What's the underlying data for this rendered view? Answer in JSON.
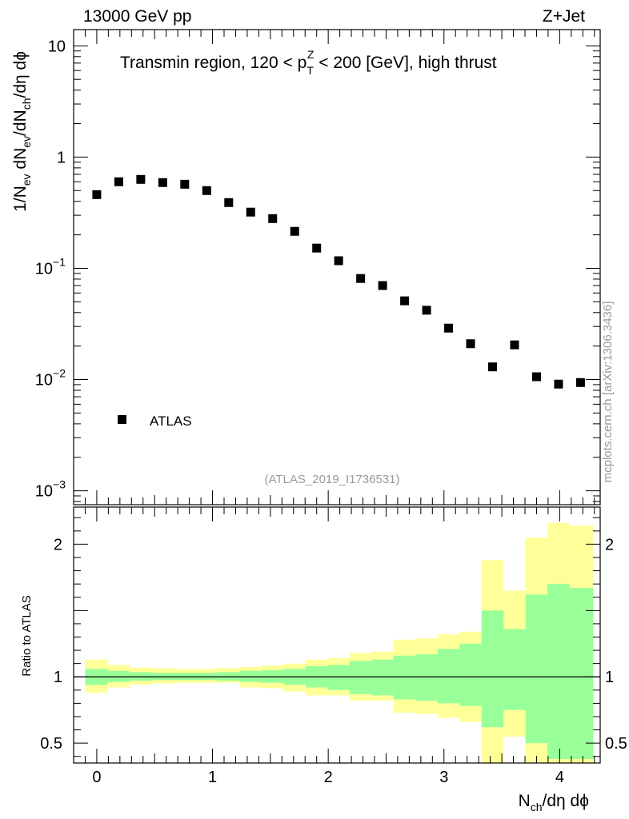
{
  "header": {
    "left_label": "13000 GeV pp",
    "right_label": "Z+Jet",
    "side_label": "mcplots.cern.ch [arXiv:1306.3436]"
  },
  "chart_data": [
    {
      "type": "scatter",
      "panel": "main",
      "title_parts": {
        "prefix": "Transmin region, 120 < p",
        "sub": "T",
        "sup": "Z",
        "suffix": " < 200 [GeV], high thrust"
      },
      "ylabel_parts": {
        "p1": "1/N",
        "s1": "ev",
        "p2": " dN",
        "s2": "ev",
        "p3": "/dN",
        "s3": "ch",
        "p4": "/dη dϕ"
      },
      "yscale": "log",
      "ylim": [
        0.00075,
        14
      ],
      "xlim": [
        -0.2,
        4.35
      ],
      "yticks": [
        {
          "value": 0.001,
          "base": "10",
          "exp": "−3"
        },
        {
          "value": 0.01,
          "base": "10",
          "exp": "−2"
        },
        {
          "value": 0.1,
          "base": "10",
          "exp": "−1"
        },
        {
          "value": 1,
          "base": "1",
          "exp": ""
        },
        {
          "value": 10,
          "base": "10",
          "exp": ""
        }
      ],
      "watermark": "(ATLAS_2019_I1736531)",
      "legend": [
        {
          "label": "ATLAS",
          "marker": "square",
          "color": "#000000"
        }
      ],
      "series": [
        {
          "name": "ATLAS",
          "x": [
            0.0,
            0.19,
            0.38,
            0.57,
            0.76,
            0.95,
            1.14,
            1.33,
            1.52,
            1.71,
            1.9,
            2.09,
            2.28,
            2.47,
            2.66,
            2.85,
            3.04,
            3.23,
            3.42,
            3.61,
            3.8,
            3.99,
            4.18
          ],
          "y": [
            0.46,
            0.6,
            0.63,
            0.59,
            0.57,
            0.5,
            0.39,
            0.32,
            0.28,
            0.215,
            0.152,
            0.117,
            0.081,
            0.07,
            0.051,
            0.042,
            0.029,
            0.021,
            0.013,
            0.0205,
            0.0106,
            0.0091,
            0.0094
          ]
        }
      ]
    },
    {
      "type": "area",
      "panel": "ratio",
      "ylabel": "Ratio to ATLAS",
      "xlabel_parts": {
        "p1": "N",
        "s1": "ch",
        "p2": "/dη dϕ"
      },
      "ylim": [
        0.35,
        2.28
      ],
      "xlim": [
        -0.2,
        4.35
      ],
      "yticks": [
        0.5,
        1,
        2
      ],
      "ytick_labels": [
        "0.5",
        "1",
        "2"
      ],
      "xticks": [
        0,
        1,
        2,
        3,
        4
      ],
      "xtick_labels": [
        "0",
        "1",
        "2",
        "3",
        "4"
      ],
      "reference_line": 1,
      "bin_edges": [
        -0.1,
        0.095,
        0.285,
        0.475,
        0.665,
        0.855,
        1.045,
        1.235,
        1.425,
        1.615,
        1.805,
        1.995,
        2.185,
        2.375,
        2.565,
        2.755,
        2.945,
        3.135,
        3.325,
        3.515,
        3.705,
        3.895,
        4.085,
        4.29
      ],
      "bands": [
        {
          "name": "total uncertainty",
          "color": "#ffff99",
          "low": [
            0.88,
            0.92,
            0.94,
            0.95,
            0.955,
            0.955,
            0.955,
            0.92,
            0.915,
            0.89,
            0.86,
            0.86,
            0.82,
            0.82,
            0.73,
            0.72,
            0.69,
            0.66,
            0.3,
            0.55,
            0.3,
            0.3,
            0.3
          ],
          "high": [
            1.13,
            1.09,
            1.07,
            1.065,
            1.06,
            1.06,
            1.065,
            1.075,
            1.085,
            1.1,
            1.13,
            1.14,
            1.18,
            1.19,
            1.28,
            1.29,
            1.32,
            1.34,
            1.88,
            1.65,
            2.05,
            2.16,
            2.14
          ]
        },
        {
          "name": "statistical uncertainty",
          "color": "#99ff99",
          "low": [
            0.94,
            0.96,
            0.97,
            0.975,
            0.975,
            0.975,
            0.97,
            0.96,
            0.955,
            0.94,
            0.92,
            0.9,
            0.87,
            0.86,
            0.83,
            0.82,
            0.8,
            0.78,
            0.62,
            0.75,
            0.5,
            0.38,
            0.38
          ],
          "high": [
            1.06,
            1.045,
            1.035,
            1.03,
            1.03,
            1.03,
            1.035,
            1.045,
            1.05,
            1.06,
            1.08,
            1.09,
            1.12,
            1.13,
            1.16,
            1.17,
            1.21,
            1.25,
            1.5,
            1.36,
            1.62,
            1.7,
            1.67
          ]
        }
      ]
    }
  ]
}
